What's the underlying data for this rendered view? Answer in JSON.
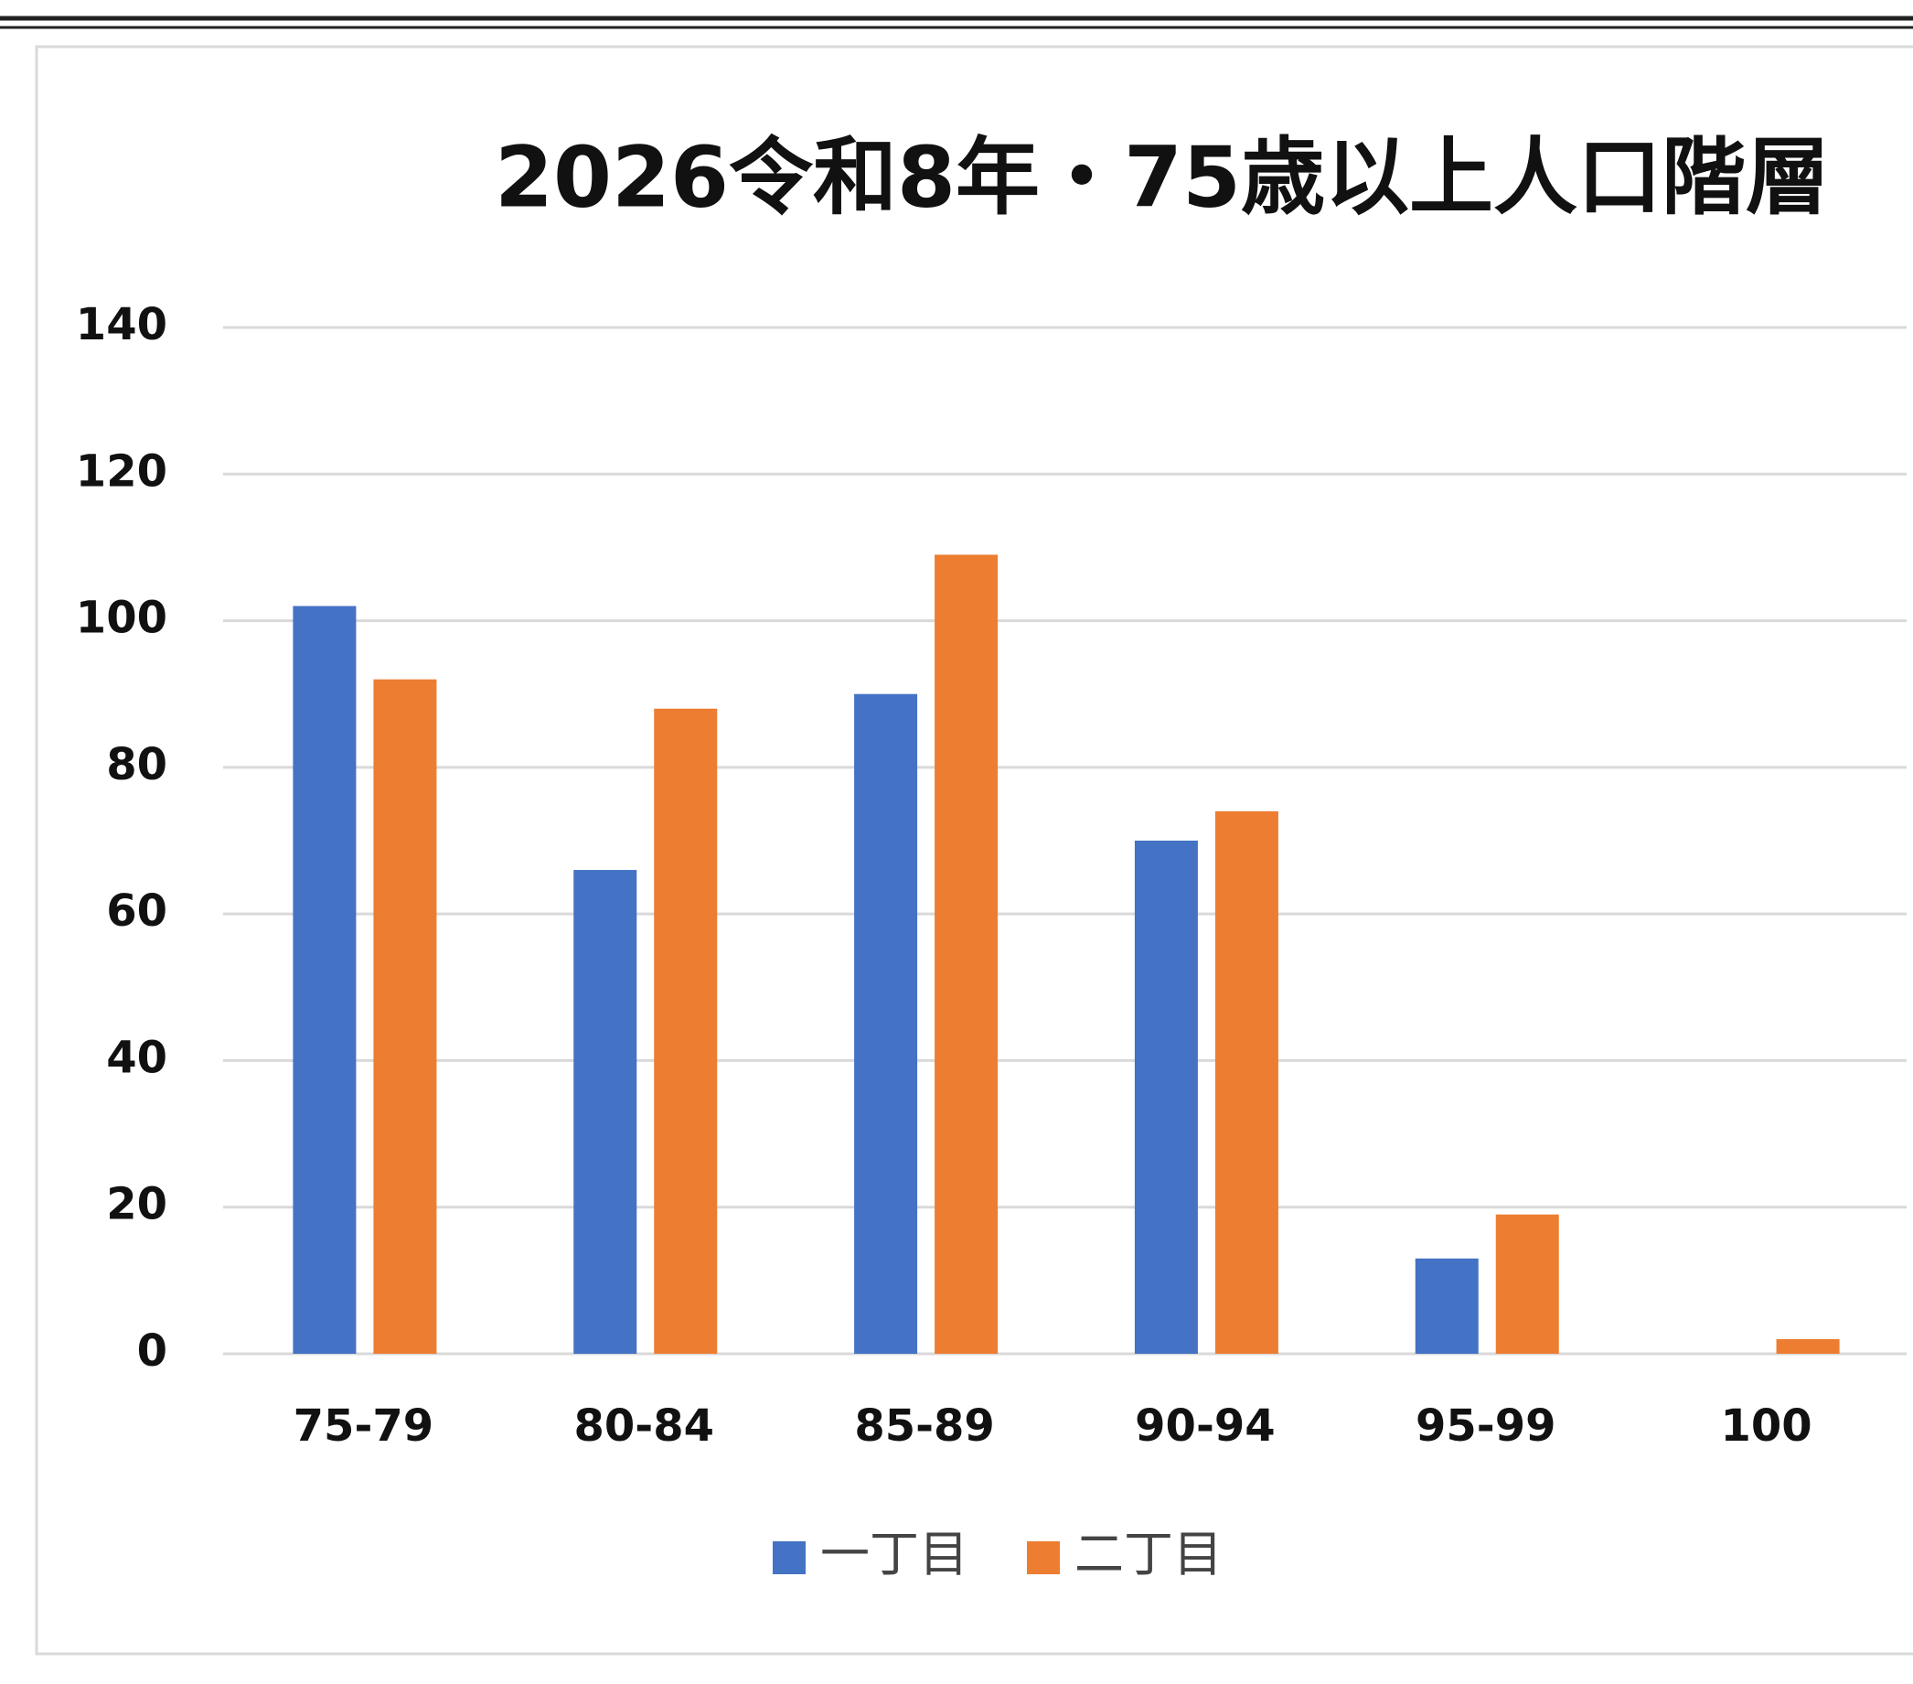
{
  "chart_data": {
    "type": "bar",
    "title": "2026令和8年・75歳以上人口階層",
    "categories": [
      "75-79",
      "80-84",
      "85-89",
      "90-94",
      "95-99",
      "100"
    ],
    "series": [
      {
        "name": "一丁目",
        "color": "#4472c4",
        "values": [
          102,
          66,
          90,
          70,
          13,
          0
        ]
      },
      {
        "name": "二丁目",
        "color": "#ed7d31",
        "values": [
          92,
          88,
          109,
          74,
          19,
          2
        ]
      }
    ],
    "ylim": [
      0,
      140
    ],
    "yticks": [
      0,
      20,
      40,
      60,
      80,
      100,
      120,
      140
    ],
    "grid": true,
    "legend": "bottom"
  }
}
